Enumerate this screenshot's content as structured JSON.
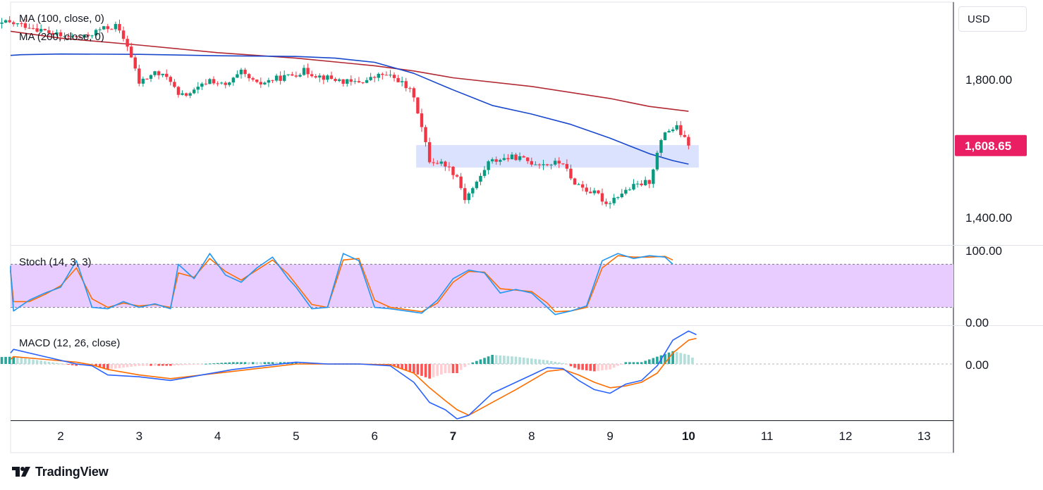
{
  "chart_data": {
    "type": "candlestick",
    "currency_label": "USD",
    "brand": "TradingView",
    "price_axis": {
      "ticks": [
        {
          "value": 1800,
          "label": "1,800.00"
        },
        {
          "value": 1400,
          "label": "1,400.00"
        }
      ],
      "ylim": [
        1320,
        2000
      ]
    },
    "last_price": {
      "value": 1608.65,
      "label": "1,608.65"
    },
    "x_axis": {
      "labels": [
        "2",
        "3",
        "4",
        "5",
        "6",
        "7",
        "8",
        "9",
        "10",
        "11",
        "12",
        "13"
      ],
      "bold_labels": [
        "7",
        "10"
      ]
    },
    "indicators": {
      "ma100_label": "MA (100, close, 0)",
      "ma200_label": "MA (200, close, 0)",
      "stoch_label": "Stoch (14, 3, 3)",
      "macd_label": "MACD (12, 26, close)"
    },
    "stoch_axis": {
      "labels": [
        "100.00",
        "0.00"
      ],
      "band": [
        20,
        80
      ]
    },
    "macd_axis": {
      "labels": [
        "0.00"
      ]
    },
    "zone": {
      "from": 1545,
      "to": 1610,
      "start_x": 6.53,
      "end_x": 10.13
    },
    "candle_path": [
      [
        1.0,
        1940
      ],
      [
        1.3,
        1965
      ],
      [
        1.6,
        1955
      ],
      [
        2.0,
        1925
      ],
      [
        2.3,
        1922
      ],
      [
        2.5,
        1945
      ],
      [
        2.7,
        1955
      ],
      [
        2.85,
        1900
      ],
      [
        3.0,
        1790
      ],
      [
        3.2,
        1820
      ],
      [
        3.4,
        1800
      ],
      [
        3.5,
        1750
      ],
      [
        3.7,
        1765
      ],
      [
        3.9,
        1800
      ],
      [
        4.1,
        1780
      ],
      [
        4.3,
        1820
      ],
      [
        4.5,
        1785
      ],
      [
        4.7,
        1800
      ],
      [
        4.9,
        1810
      ],
      [
        5.1,
        1825
      ],
      [
        5.3,
        1810
      ],
      [
        5.5,
        1800
      ],
      [
        5.7,
        1790
      ],
      [
        5.9,
        1798
      ],
      [
        6.1,
        1815
      ],
      [
        6.3,
        1800
      ],
      [
        6.5,
        1755
      ],
      [
        6.6,
        1660
      ],
      [
        6.7,
        1565
      ],
      [
        6.9,
        1555
      ],
      [
        7.05,
        1520
      ],
      [
        7.15,
        1455
      ],
      [
        7.3,
        1500
      ],
      [
        7.45,
        1560
      ],
      [
        7.6,
        1570
      ],
      [
        7.8,
        1575
      ],
      [
        8.0,
        1560
      ],
      [
        8.2,
        1555
      ],
      [
        8.4,
        1560
      ],
      [
        8.5,
        1510
      ],
      [
        8.7,
        1480
      ],
      [
        8.85,
        1465
      ],
      [
        8.95,
        1440
      ],
      [
        9.1,
        1465
      ],
      [
        9.3,
        1490
      ],
      [
        9.5,
        1505
      ],
      [
        9.6,
        1585
      ],
      [
        9.7,
        1650
      ],
      [
        9.85,
        1660
      ],
      [
        10.0,
        1608.65
      ]
    ],
    "ma100_path": [
      [
        1.0,
        1870
      ],
      [
        1.5,
        1872
      ],
      [
        2.0,
        1874
      ],
      [
        3.0,
        1873
      ],
      [
        4.0,
        1869
      ],
      [
        5.0,
        1867
      ],
      [
        5.5,
        1862
      ],
      [
        6.0,
        1850
      ],
      [
        6.5,
        1818
      ],
      [
        7.0,
        1770
      ],
      [
        7.5,
        1725
      ],
      [
        8.0,
        1700
      ],
      [
        8.5,
        1670
      ],
      [
        9.0,
        1630
      ],
      [
        9.5,
        1585
      ],
      [
        9.8,
        1565
      ],
      [
        10.0,
        1555
      ]
    ],
    "ma200_path": [
      [
        1.0,
        1940
      ],
      [
        2.0,
        1920
      ],
      [
        3.0,
        1900
      ],
      [
        4.0,
        1878
      ],
      [
        5.0,
        1862
      ],
      [
        6.0,
        1840
      ],
      [
        6.5,
        1825
      ],
      [
        7.0,
        1805
      ],
      [
        8.0,
        1780
      ],
      [
        9.0,
        1745
      ],
      [
        9.5,
        1722
      ],
      [
        10.0,
        1708
      ]
    ],
    "stoch_k": [
      [
        1.0,
        78
      ],
      [
        1.2,
        70
      ],
      [
        1.4,
        15
      ],
      [
        1.6,
        30
      ],
      [
        1.8,
        40
      ],
      [
        2.0,
        48
      ],
      [
        2.2,
        85
      ],
      [
        2.4,
        20
      ],
      [
        2.6,
        18
      ],
      [
        2.8,
        28
      ],
      [
        3.0,
        20
      ],
      [
        3.2,
        25
      ],
      [
        3.4,
        18
      ],
      [
        3.5,
        80
      ],
      [
        3.7,
        60
      ],
      [
        3.9,
        95
      ],
      [
        4.1,
        65
      ],
      [
        4.3,
        55
      ],
      [
        4.5,
        75
      ],
      [
        4.7,
        90
      ],
      [
        4.9,
        60
      ],
      [
        5.0,
        48
      ],
      [
        5.2,
        18
      ],
      [
        5.4,
        20
      ],
      [
        5.6,
        95
      ],
      [
        5.8,
        85
      ],
      [
        6.0,
        20
      ],
      [
        6.2,
        18
      ],
      [
        6.4,
        15
      ],
      [
        6.6,
        12
      ],
      [
        6.8,
        30
      ],
      [
        7.0,
        60
      ],
      [
        7.2,
        72
      ],
      [
        7.4,
        68
      ],
      [
        7.6,
        40
      ],
      [
        7.8,
        45
      ],
      [
        8.0,
        40
      ],
      [
        8.2,
        20
      ],
      [
        8.3,
        10
      ],
      [
        8.5,
        15
      ],
      [
        8.7,
        22
      ],
      [
        8.9,
        85
      ],
      [
        9.1,
        95
      ],
      [
        9.3,
        88
      ],
      [
        9.5,
        92
      ],
      [
        9.7,
        90
      ],
      [
        9.8,
        80
      ]
    ],
    "stoch_d": [
      [
        1.0,
        72
      ],
      [
        1.2,
        70
      ],
      [
        1.4,
        28
      ],
      [
        1.6,
        28
      ],
      [
        1.8,
        38
      ],
      [
        2.0,
        50
      ],
      [
        2.2,
        75
      ],
      [
        2.4,
        32
      ],
      [
        2.6,
        20
      ],
      [
        2.8,
        26
      ],
      [
        3.0,
        22
      ],
      [
        3.2,
        24
      ],
      [
        3.4,
        20
      ],
      [
        3.5,
        68
      ],
      [
        3.7,
        62
      ],
      [
        3.9,
        88
      ],
      [
        4.1,
        70
      ],
      [
        4.3,
        58
      ],
      [
        4.5,
        72
      ],
      [
        4.7,
        86
      ],
      [
        4.9,
        66
      ],
      [
        5.0,
        52
      ],
      [
        5.2,
        24
      ],
      [
        5.4,
        20
      ],
      [
        5.6,
        86
      ],
      [
        5.8,
        88
      ],
      [
        6.0,
        30
      ],
      [
        6.2,
        20
      ],
      [
        6.4,
        17
      ],
      [
        6.6,
        14
      ],
      [
        6.8,
        26
      ],
      [
        7.0,
        55
      ],
      [
        7.2,
        70
      ],
      [
        7.4,
        69
      ],
      [
        7.6,
        46
      ],
      [
        7.8,
        44
      ],
      [
        8.0,
        42
      ],
      [
        8.2,
        26
      ],
      [
        8.3,
        14
      ],
      [
        8.5,
        15
      ],
      [
        8.7,
        20
      ],
      [
        8.9,
        75
      ],
      [
        9.1,
        92
      ],
      [
        9.3,
        90
      ],
      [
        9.5,
        90
      ],
      [
        9.7,
        91
      ],
      [
        9.8,
        86
      ]
    ],
    "macd_line": [
      [
        1.0,
        0.12
      ],
      [
        1.4,
        0.16
      ],
      [
        1.8,
        0.08
      ],
      [
        2.2,
        0.0
      ],
      [
        2.4,
        -0.02
      ],
      [
        2.6,
        -0.12
      ],
      [
        3.0,
        -0.14
      ],
      [
        3.4,
        -0.18
      ],
      [
        3.8,
        -0.12
      ],
      [
        4.2,
        -0.06
      ],
      [
        4.6,
        -0.02
      ],
      [
        5.0,
        0.02
      ],
      [
        5.4,
        0.0
      ],
      [
        5.8,
        0.0
      ],
      [
        6.2,
        -0.02
      ],
      [
        6.5,
        -0.2
      ],
      [
        6.7,
        -0.42
      ],
      [
        6.9,
        -0.5
      ],
      [
        7.05,
        -0.6
      ],
      [
        7.2,
        -0.56
      ],
      [
        7.5,
        -0.32
      ],
      [
        7.8,
        -0.2
      ],
      [
        8.0,
        -0.12
      ],
      [
        8.2,
        -0.04
      ],
      [
        8.4,
        -0.05
      ],
      [
        8.6,
        -0.18
      ],
      [
        8.8,
        -0.28
      ],
      [
        9.0,
        -0.32
      ],
      [
        9.2,
        -0.22
      ],
      [
        9.4,
        -0.18
      ],
      [
        9.6,
        -0.02
      ],
      [
        9.8,
        0.26
      ],
      [
        10.0,
        0.36
      ],
      [
        10.1,
        0.32
      ]
    ],
    "macd_signal": [
      [
        1.0,
        0.05
      ],
      [
        1.4,
        0.08
      ],
      [
        1.8,
        0.05
      ],
      [
        2.2,
        0.02
      ],
      [
        2.4,
        -0.01
      ],
      [
        2.6,
        -0.06
      ],
      [
        3.0,
        -0.12
      ],
      [
        3.4,
        -0.16
      ],
      [
        3.8,
        -0.12
      ],
      [
        4.2,
        -0.08
      ],
      [
        4.6,
        -0.04
      ],
      [
        5.0,
        0.0
      ],
      [
        5.4,
        0.0
      ],
      [
        5.8,
        0.0
      ],
      [
        6.2,
        -0.01
      ],
      [
        6.5,
        -0.1
      ],
      [
        6.7,
        -0.26
      ],
      [
        6.9,
        -0.4
      ],
      [
        7.05,
        -0.5
      ],
      [
        7.2,
        -0.56
      ],
      [
        7.5,
        -0.42
      ],
      [
        7.8,
        -0.28
      ],
      [
        8.0,
        -0.18
      ],
      [
        8.2,
        -0.08
      ],
      [
        8.4,
        -0.06
      ],
      [
        8.6,
        -0.12
      ],
      [
        8.8,
        -0.2
      ],
      [
        9.0,
        -0.26
      ],
      [
        9.2,
        -0.24
      ],
      [
        9.4,
        -0.2
      ],
      [
        9.6,
        -0.1
      ],
      [
        9.8,
        0.12
      ],
      [
        10.0,
        0.26
      ],
      [
        10.1,
        0.28
      ]
    ],
    "colors": {
      "up": "#089981",
      "down": "#f23645",
      "ma100": "#1848cc",
      "ma200": "#b22833",
      "zone": "#d1dbfc",
      "stoch_band": "#e8ccff",
      "stoch_k": "#2196f3",
      "stoch_d": "#ff6d00",
      "macd": "#2962ff",
      "signal": "#ff6d00",
      "hist_up_strong": "#26a69a",
      "hist_up_weak": "#b2dfdb",
      "hist_down_strong": "#ff5252",
      "hist_down_weak": "#ffcdd2",
      "price_tag": "#e91e63"
    }
  }
}
